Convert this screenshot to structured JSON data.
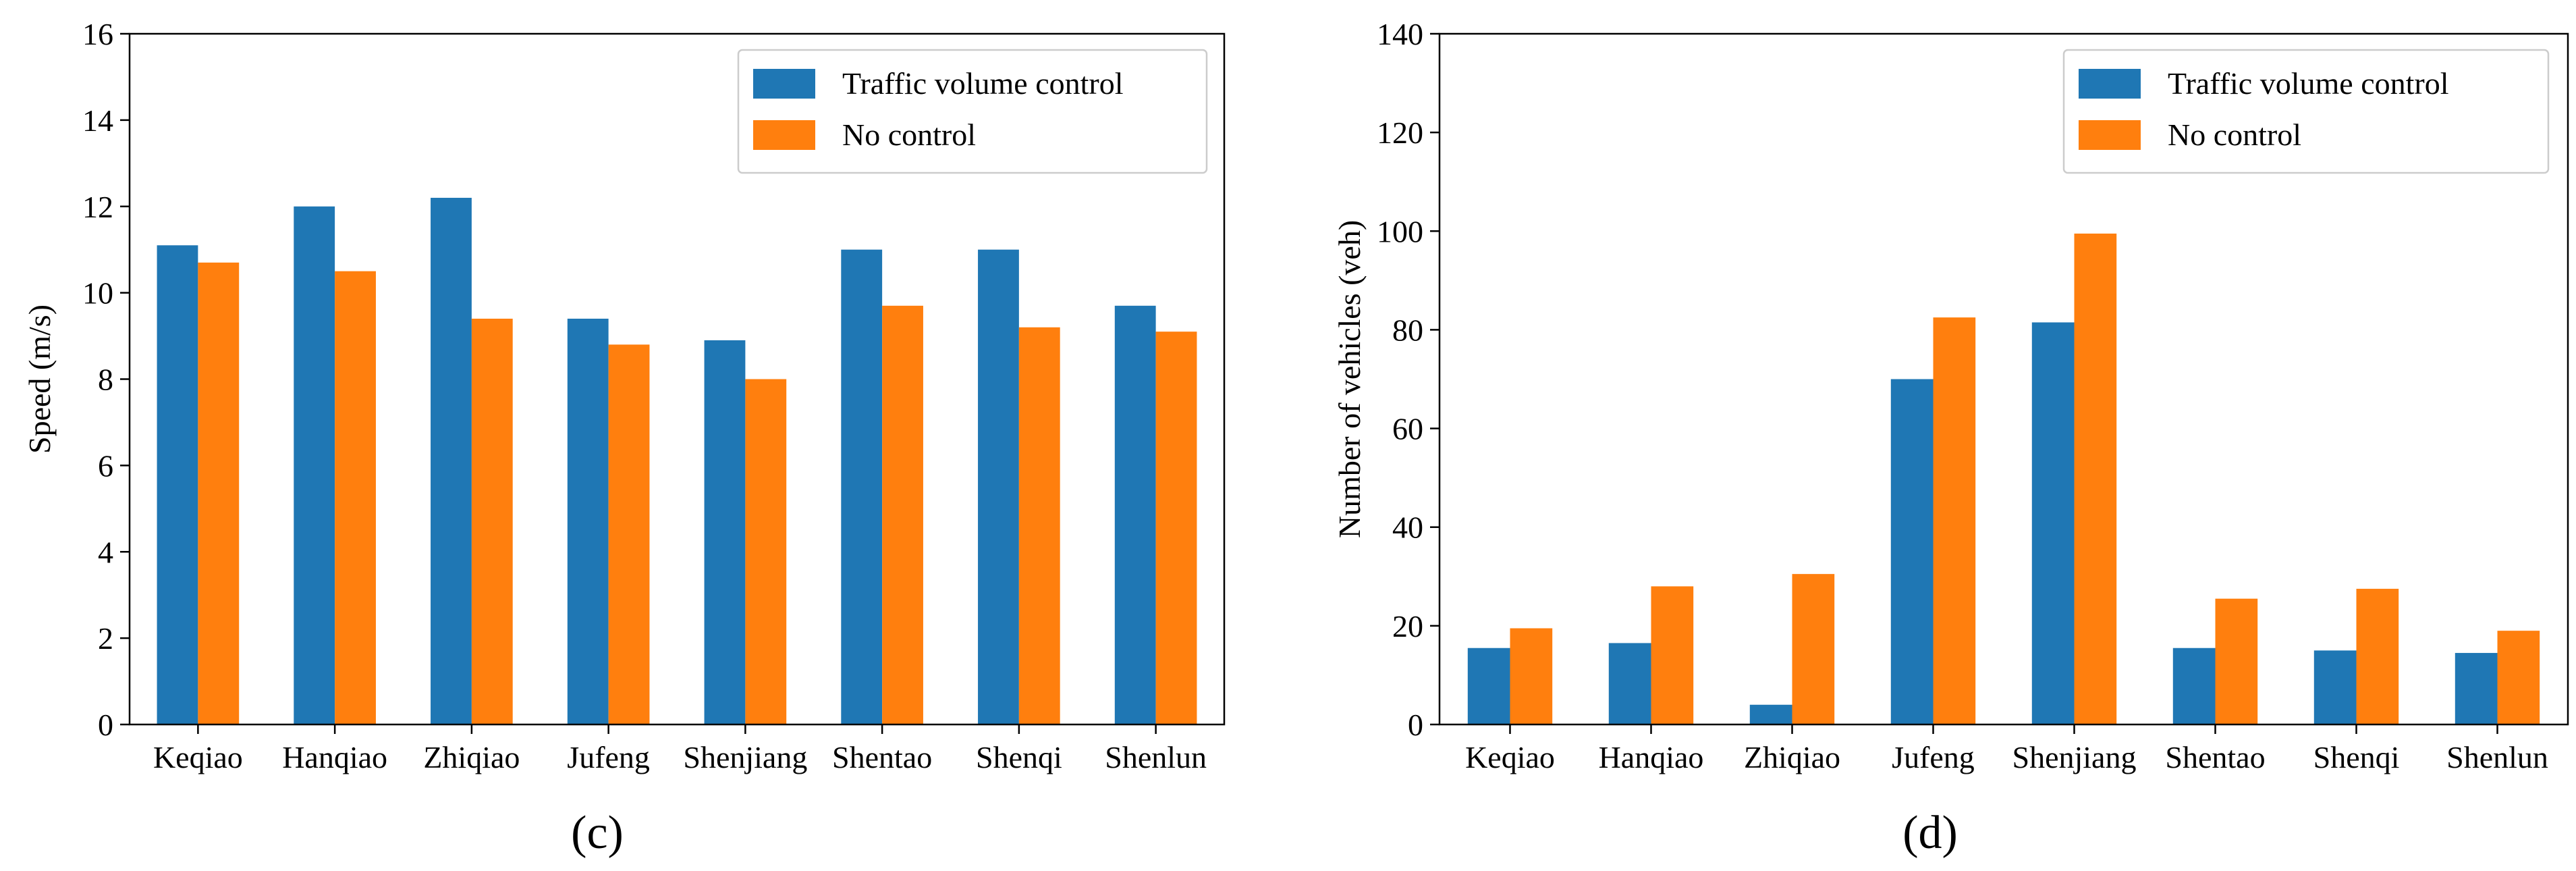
{
  "chart_data": [
    {
      "type": "bar",
      "caption": "(c)",
      "title": "",
      "xlabel": "",
      "ylabel": "Speed (m/s)",
      "ylim": [
        0,
        16
      ],
      "yticks": [
        0,
        2,
        4,
        6,
        8,
        10,
        12,
        14,
        16
      ],
      "grid": false,
      "legend": "top-right",
      "categories": [
        "Keqiao",
        "Hanqiao",
        "Zhiqiao",
        "Jufeng",
        "Shenjiang",
        "Shentao",
        "Shenqi",
        "Shenlun"
      ],
      "series": [
        {
          "name": "Traffic volume control",
          "color": "#1f77b4",
          "values": [
            11.1,
            12.0,
            12.2,
            9.4,
            8.9,
            11.0,
            11.0,
            9.7
          ]
        },
        {
          "name": "No control",
          "color": "#ff7f0e",
          "values": [
            10.7,
            10.5,
            9.4,
            8.8,
            8.0,
            9.7,
            9.2,
            9.1
          ]
        }
      ]
    },
    {
      "type": "bar",
      "caption": "(d)",
      "title": "",
      "xlabel": "",
      "ylabel": "Number of vehicles (veh)",
      "ylim": [
        0,
        140
      ],
      "yticks": [
        0,
        20,
        40,
        60,
        80,
        100,
        120,
        140
      ],
      "grid": false,
      "legend": "top-right",
      "categories": [
        "Keqiao",
        "Hanqiao",
        "Zhiqiao",
        "Jufeng",
        "Shenjiang",
        "Shentao",
        "Shenqi",
        "Shenlun"
      ],
      "series": [
        {
          "name": "Traffic volume control",
          "color": "#1f77b4",
          "values": [
            15.5,
            16.5,
            4.0,
            70.0,
            81.5,
            15.5,
            15.0,
            14.5
          ]
        },
        {
          "name": "No control",
          "color": "#ff7f0e",
          "values": [
            19.5,
            28.0,
            30.5,
            82.5,
            99.5,
            25.5,
            27.5,
            19.0
          ]
        }
      ]
    }
  ]
}
